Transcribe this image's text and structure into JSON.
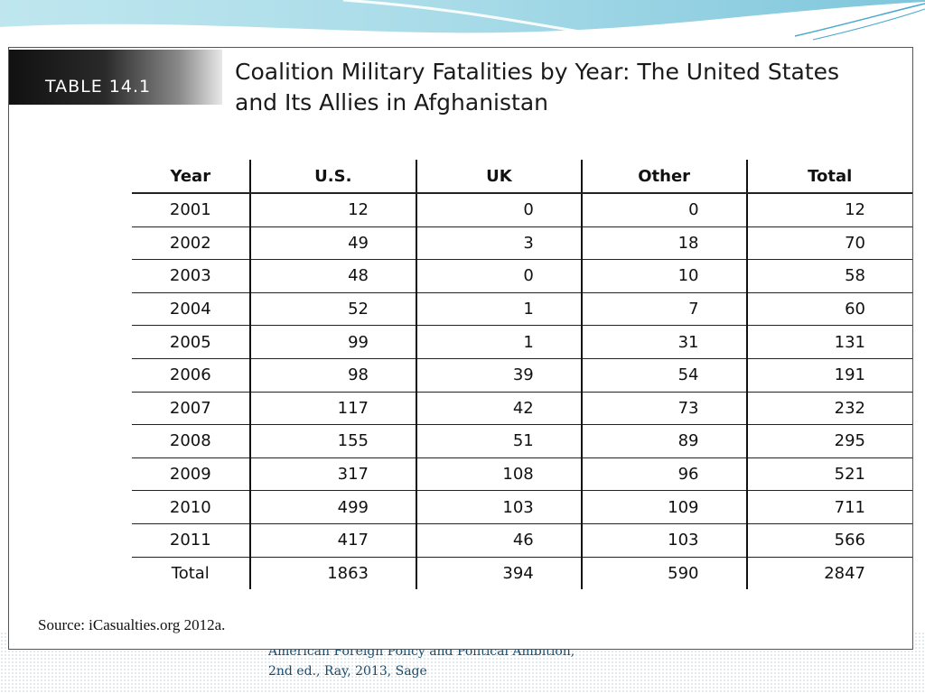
{
  "figure": {
    "tag": "TABLE 14.1",
    "title": "Coalition Military Fatalities by Year: The United States and Its Allies in Afghanistan",
    "source": "Source: iCasualties.org 2012a."
  },
  "chart_data": {
    "type": "table",
    "columns": [
      "Year",
      "U.S.",
      "UK",
      "Other",
      "Total"
    ],
    "rows": [
      [
        "2001",
        "12",
        "0",
        "0",
        "12"
      ],
      [
        "2002",
        "49",
        "3",
        "18",
        "70"
      ],
      [
        "2003",
        "48",
        "0",
        "10",
        "58"
      ],
      [
        "2004",
        "52",
        "1",
        "7",
        "60"
      ],
      [
        "2005",
        "99",
        "1",
        "31",
        "131"
      ],
      [
        "2006",
        "98",
        "39",
        "54",
        "191"
      ],
      [
        "2007",
        "117",
        "42",
        "73",
        "232"
      ],
      [
        "2008",
        "155",
        "51",
        "89",
        "295"
      ],
      [
        "2009",
        "317",
        "108",
        "96",
        "521"
      ],
      [
        "2010",
        "499",
        "103",
        "109",
        "711"
      ],
      [
        "2011",
        "417",
        "46",
        "103",
        "566"
      ],
      [
        "Total",
        "1863",
        "394",
        "590",
        "2847"
      ]
    ]
  },
  "footer": {
    "line1": "American Foreign Policy and Political Ambition,",
    "line2": "2nd ed., Ray, 2013, Sage"
  }
}
